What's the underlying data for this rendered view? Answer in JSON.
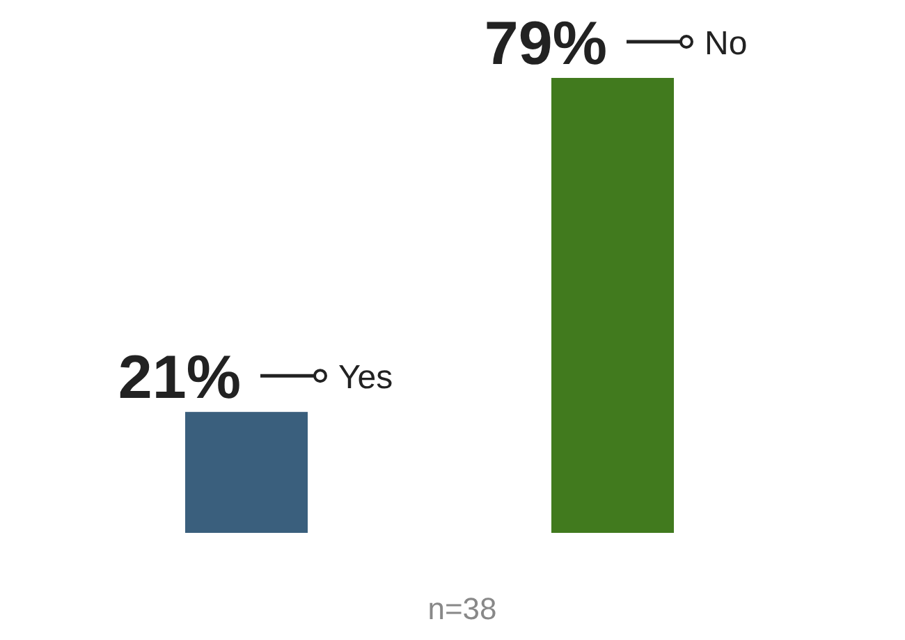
{
  "chart_data": {
    "type": "bar",
    "categories": [
      "Yes",
      "No"
    ],
    "values": [
      21,
      79
    ],
    "colors": [
      "#3a5f7d",
      "#417a1e"
    ],
    "value_labels": [
      "21%",
      "79%"
    ],
    "annotations": [
      "n=38"
    ]
  }
}
